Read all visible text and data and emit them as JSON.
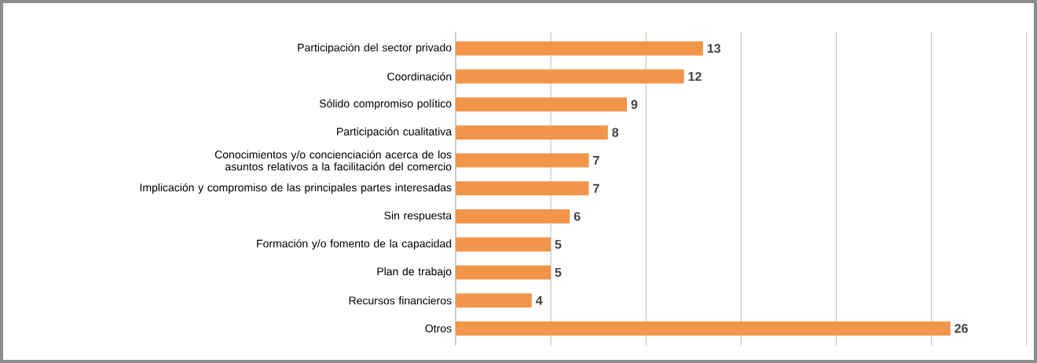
{
  "chart_data": {
    "type": "bar",
    "orientation": "horizontal",
    "categories": [
      "Participación del sector privado",
      "Coordinación",
      "Sólido compromiso político",
      "Participación cualitativa",
      "Conocimientos y/o concienciación acerca de los asuntos relativos a la facilitación del comercio",
      "Implicación y compromiso de las principales partes interesadas",
      "Sin respuesta",
      "Formación y/o fomento de la capacidad",
      "Plan de trabajo",
      "Recursos financieros",
      "Otros"
    ],
    "values": [
      13,
      12,
      9,
      8,
      7,
      7,
      6,
      5,
      5,
      4,
      26
    ],
    "color": "#f0954a",
    "xlim": [
      0,
      30
    ],
    "xticks": [
      {
        "value": 0,
        "label": null
      },
      {
        "value": 5,
        "label": null
      },
      {
        "value": 10,
        "label": null
      },
      {
        "value": 15,
        "label": null
      },
      {
        "value": 20,
        "label": null
      },
      {
        "value": 25,
        "label": null
      },
      {
        "value": 30,
        "label": null
      }
    ],
    "tick_labels": "y",
    "grid": "x",
    "data_labels": true
  }
}
